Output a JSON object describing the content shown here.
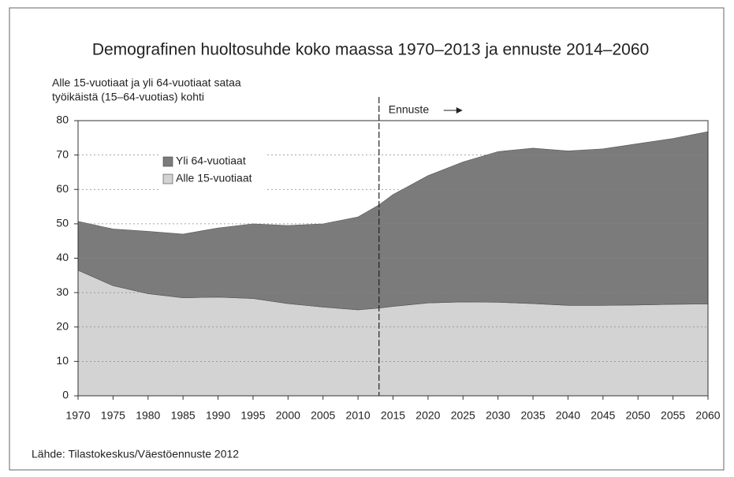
{
  "chart_data": {
    "type": "stacked_area",
    "title": "Demografinen huoltosuhde koko maassa 1970–2013 ja ennuste 2014–2060",
    "y_label": [
      "Alle 15-vuotiaat ja yli 64-vuotiaat sataa",
      "työikäistä (15–64-vuotias) kohti"
    ],
    "annotation": "Ennuste",
    "forecast_line_x": 2013,
    "source": "Lähde: Tilastokeskus/Väestöennuste 2012",
    "x": [
      1970,
      1975,
      1980,
      1985,
      1990,
      1995,
      2000,
      2005,
      2010,
      2013,
      2015,
      2020,
      2025,
      2030,
      2035,
      2040,
      2045,
      2050,
      2055,
      2060
    ],
    "series": [
      {
        "name": "Alle 15-vuotiaat",
        "color": "#d3d3d3",
        "values": [
          36.5,
          32,
          29.7,
          28.5,
          28.7,
          28.3,
          26.8,
          25.8,
          25,
          25.5,
          26,
          27,
          27.3,
          27.2,
          26.8,
          26.3,
          26.3,
          26.4,
          26.6,
          26.7
        ]
      },
      {
        "name": "Yli 64-vuotiaat",
        "color": "#7b7b7b",
        "values": [
          14.2,
          16.5,
          18.1,
          18.5,
          20.1,
          21.7,
          22.7,
          24.2,
          27,
          30,
          32.5,
          37,
          40.7,
          43.8,
          45.2,
          44.9,
          45.5,
          46.9,
          48.2,
          50.1
        ]
      }
    ],
    "xlim": [
      1970,
      2060
    ],
    "xticks": [
      1970,
      1975,
      1980,
      1985,
      1990,
      1995,
      2000,
      2005,
      2010,
      2015,
      2020,
      2025,
      2030,
      2035,
      2040,
      2045,
      2050,
      2055,
      2060
    ],
    "ylim": [
      0,
      80
    ],
    "yticks": [
      0,
      10,
      20,
      30,
      40,
      50,
      60,
      70,
      80
    ],
    "grid": true
  }
}
